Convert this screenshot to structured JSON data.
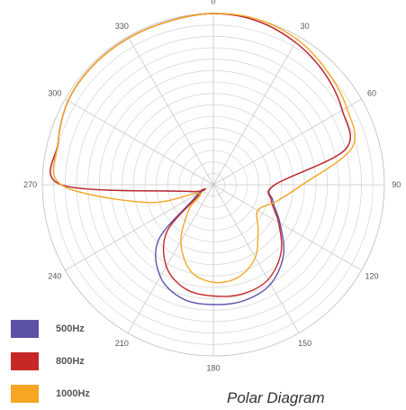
{
  "chart_data": {
    "type": "polar-line",
    "title": "Polar Diagram",
    "angle_ticks": [
      "0",
      "30",
      "60",
      "90",
      "120",
      "150",
      "180",
      "210",
      "240",
      "270",
      "300",
      "330"
    ],
    "radial_range": [
      0,
      1
    ],
    "radial_rings": 15,
    "grid": true,
    "legend_position": "bottom-left",
    "series": [
      {
        "name": "500Hz",
        "color": "#5b52a8",
        "points": [
          {
            "angle": 0,
            "r": 1.0
          },
          {
            "angle": 15,
            "r": 0.99
          },
          {
            "angle": 30,
            "r": 0.96
          },
          {
            "angle": 45,
            "r": 0.92
          },
          {
            "angle": 60,
            "r": 0.87
          },
          {
            "angle": 75,
            "r": 0.8
          },
          {
            "angle": 90,
            "r": 0.36
          },
          {
            "angle": 105,
            "r": 0.36
          },
          {
            "angle": 120,
            "r": 0.45
          },
          {
            "angle": 135,
            "r": 0.58
          },
          {
            "angle": 150,
            "r": 0.67
          },
          {
            "angle": 165,
            "r": 0.7
          },
          {
            "angle": 180,
            "r": 0.7
          },
          {
            "angle": 195,
            "r": 0.69
          },
          {
            "angle": 210,
            "r": 0.62
          },
          {
            "angle": 225,
            "r": 0.45
          },
          {
            "angle": 240,
            "r": 0.1
          },
          {
            "angle": 255,
            "r": 0.15
          },
          {
            "angle": 270,
            "r": 0.89
          },
          {
            "angle": 285,
            "r": 0.94
          },
          {
            "angle": 300,
            "r": 0.98
          },
          {
            "angle": 315,
            "r": 0.99
          },
          {
            "angle": 330,
            "r": 0.99
          },
          {
            "angle": 345,
            "r": 0.99
          }
        ]
      },
      {
        "name": "800Hz",
        "color": "#c62828",
        "points": [
          {
            "angle": 0,
            "r": 1.0
          },
          {
            "angle": 15,
            "r": 0.99
          },
          {
            "angle": 30,
            "r": 0.96
          },
          {
            "angle": 45,
            "r": 0.92
          },
          {
            "angle": 60,
            "r": 0.87
          },
          {
            "angle": 75,
            "r": 0.8
          },
          {
            "angle": 90,
            "r": 0.36
          },
          {
            "angle": 105,
            "r": 0.35
          },
          {
            "angle": 120,
            "r": 0.44
          },
          {
            "angle": 135,
            "r": 0.56
          },
          {
            "angle": 150,
            "r": 0.64
          },
          {
            "angle": 165,
            "r": 0.66
          },
          {
            "angle": 180,
            "r": 0.65
          },
          {
            "angle": 195,
            "r": 0.63
          },
          {
            "angle": 210,
            "r": 0.55
          },
          {
            "angle": 225,
            "r": 0.38
          },
          {
            "angle": 240,
            "r": 0.08
          },
          {
            "angle": 255,
            "r": 0.15
          },
          {
            "angle": 270,
            "r": 0.89
          },
          {
            "angle": 285,
            "r": 0.94
          },
          {
            "angle": 300,
            "r": 0.98
          },
          {
            "angle": 315,
            "r": 0.99
          },
          {
            "angle": 330,
            "r": 0.99
          },
          {
            "angle": 345,
            "r": 0.99
          }
        ]
      },
      {
        "name": "1000Hz",
        "color": "#f5a623",
        "points": [
          {
            "angle": 0,
            "r": 1.0
          },
          {
            "angle": 15,
            "r": 1.0
          },
          {
            "angle": 30,
            "r": 0.98
          },
          {
            "angle": 45,
            "r": 0.94
          },
          {
            "angle": 60,
            "r": 0.9
          },
          {
            "angle": 75,
            "r": 0.84
          },
          {
            "angle": 90,
            "r": 0.52
          },
          {
            "angle": 105,
            "r": 0.38
          },
          {
            "angle": 120,
            "r": 0.3
          },
          {
            "angle": 135,
            "r": 0.37
          },
          {
            "angle": 150,
            "r": 0.49
          },
          {
            "angle": 165,
            "r": 0.56
          },
          {
            "angle": 180,
            "r": 0.57
          },
          {
            "angle": 195,
            "r": 0.52
          },
          {
            "angle": 210,
            "r": 0.38
          },
          {
            "angle": 225,
            "r": 0.2
          },
          {
            "angle": 240,
            "r": 0.1
          },
          {
            "angle": 255,
            "r": 0.4
          },
          {
            "angle": 270,
            "r": 0.89
          },
          {
            "angle": 285,
            "r": 0.94
          },
          {
            "angle": 300,
            "r": 0.98
          },
          {
            "angle": 315,
            "r": 0.99
          },
          {
            "angle": 330,
            "r": 0.99
          },
          {
            "angle": 345,
            "r": 0.99
          }
        ]
      }
    ]
  }
}
